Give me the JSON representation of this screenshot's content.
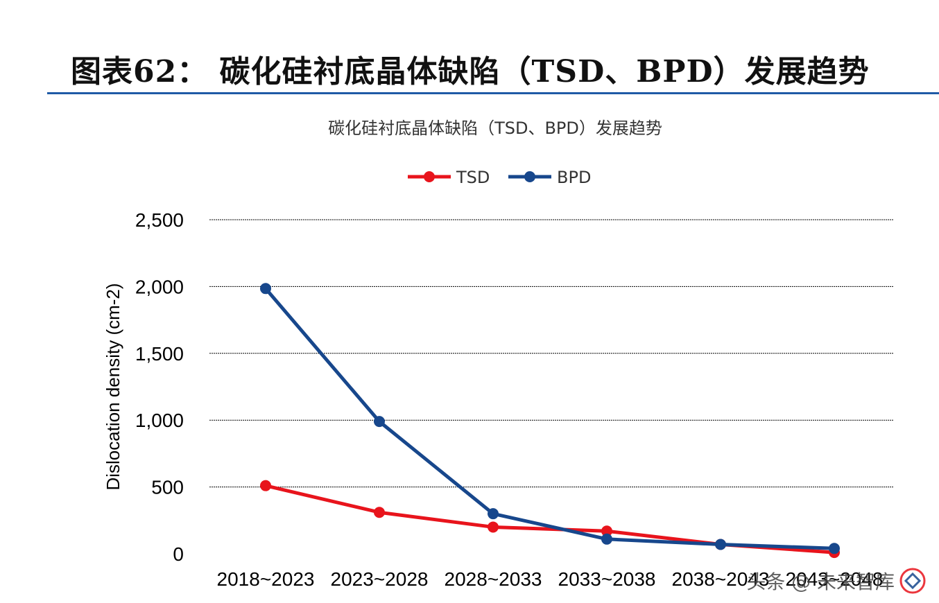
{
  "heading": "图表62：  碳化硅衬底晶体缺陷（TSD、BPD）发展趋势",
  "watermark": "头条 @ 未来智库",
  "colors": {
    "TSD": "#e8141c",
    "BPD": "#17478c",
    "rule": "#1f5aa6",
    "grid": "#000000"
  },
  "chart_data": {
    "type": "line",
    "title": "碳化硅衬底晶体缺陷（TSD、BPD）发展趋势",
    "ylabel": "Dislocation density (cm-2)",
    "xlabel": "",
    "categories": [
      "2018~2023",
      "2023~2028",
      "2028~2033",
      "2033~2038",
      "2038~2043",
      "2043~2048"
    ],
    "ylim": [
      0,
      2500
    ],
    "yticks": [
      0,
      500,
      1000,
      1500,
      2000,
      2500
    ],
    "ytick_labels": [
      "0",
      "500",
      "1,000",
      "1,500",
      "2,000",
      "2,500"
    ],
    "grid": true,
    "legend_position": "top",
    "series": [
      {
        "name": "TSD",
        "values": [
          510,
          310,
          200,
          170,
          70,
          10
        ]
      },
      {
        "name": "BPD",
        "values": [
          1985,
          990,
          300,
          110,
          70,
          40
        ]
      }
    ]
  }
}
